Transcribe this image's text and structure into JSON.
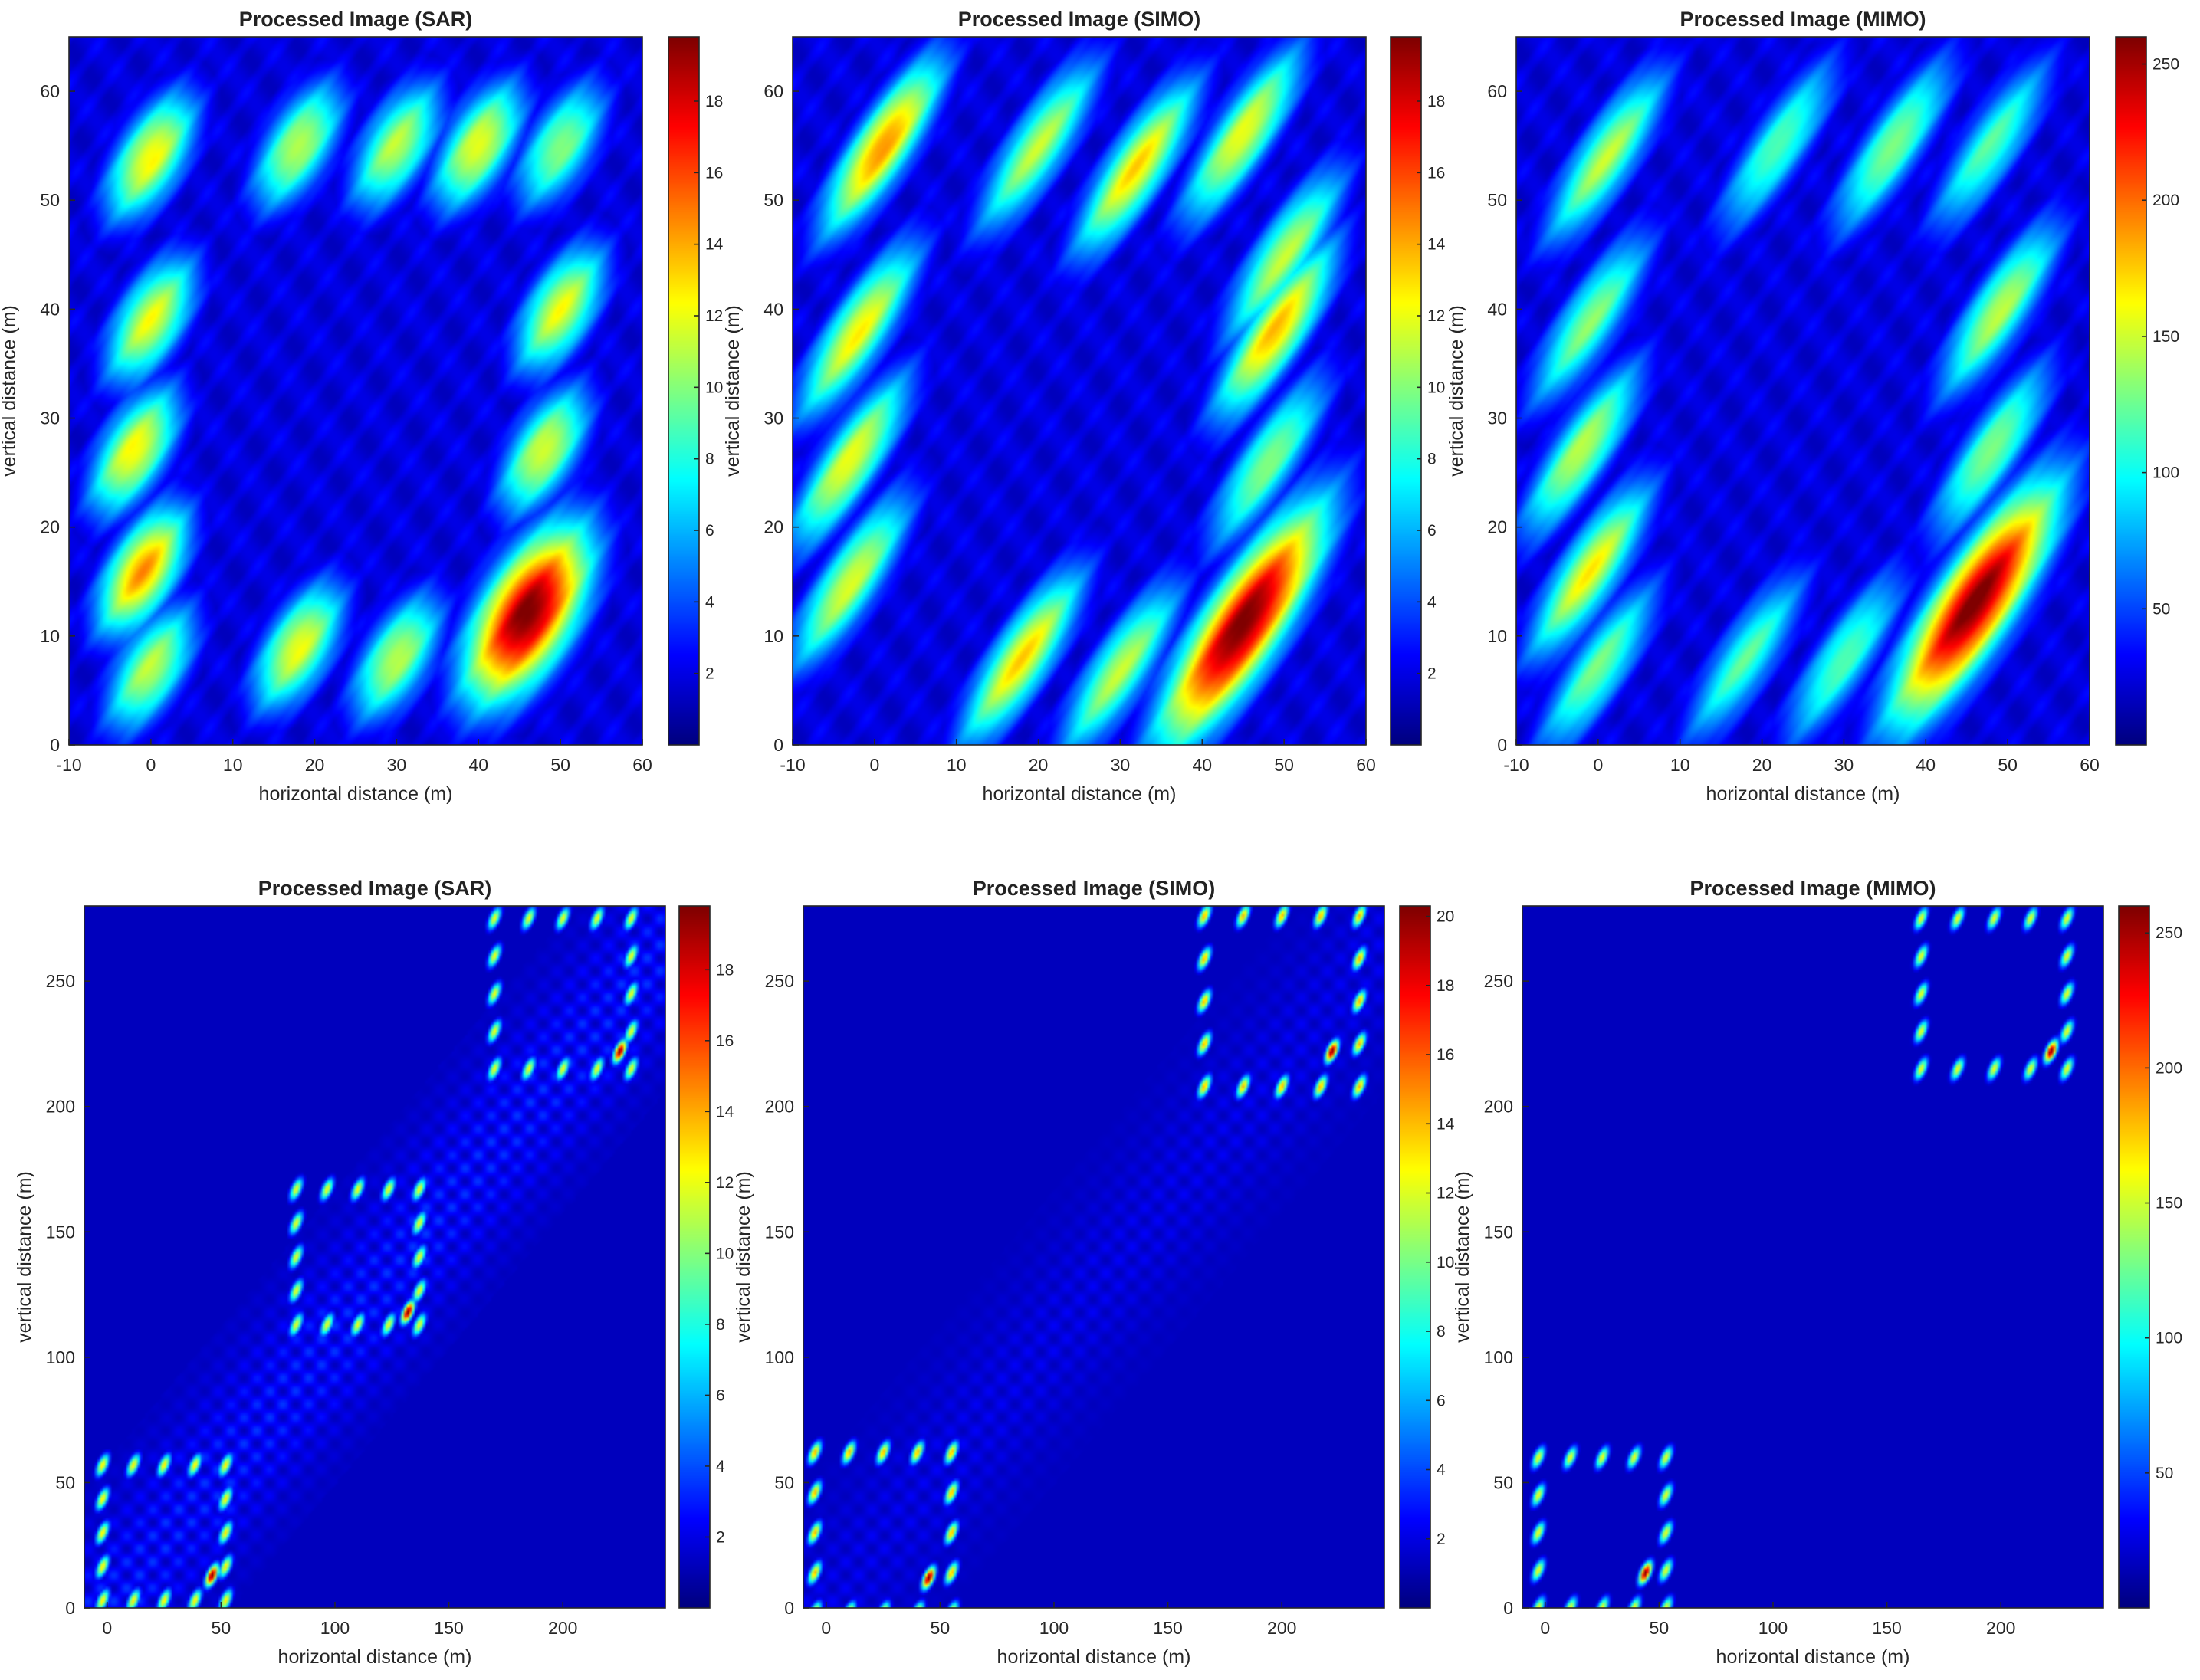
{
  "figure": {
    "panels": [
      {
        "title": "Processed Image (SAR)",
        "xlabel": "horizontal distance (m)",
        "ylabel": "vertical distance (m)"
      },
      {
        "title": "Processed Image (SIMO)",
        "xlabel": "horizontal distance (m)",
        "ylabel": "vertical distance (m)"
      },
      {
        "title": "Processed Image (MIMO)",
        "xlabel": "horizontal distance (m)",
        "ylabel": "vertical distance (m)"
      },
      {
        "title": "Processed Image (SAR)",
        "xlabel": "horizontal distance (m)",
        "ylabel": "vertical distance (m)"
      },
      {
        "title": "Processed Image (SIMO)",
        "xlabel": "horizontal distance (m)",
        "ylabel": "vertical distance (m)"
      },
      {
        "title": "Processed Image (MIMO)",
        "xlabel": "horizontal distance (m)",
        "ylabel": "vertical distance (m)"
      }
    ],
    "colormap": "jet",
    "colormap_stops": [
      "#00008f",
      "#0000ff",
      "#00ffff",
      "#ffff00",
      "#ff0000",
      "#800000"
    ]
  },
  "chart_data": [
    {
      "type": "heatmap",
      "title": "Processed Image (SAR)",
      "xlabel": "horizontal distance (m)",
      "ylabel": "vertical distance (m)",
      "xlim": [
        -10,
        60
      ],
      "ylim": [
        0,
        65
      ],
      "xticks": [
        -10,
        0,
        10,
        20,
        30,
        40,
        50,
        60
      ],
      "yticks": [
        0,
        10,
        20,
        30,
        40,
        50,
        60
      ],
      "clim": [
        0,
        19.8
      ],
      "colorbar_ticks": [
        2,
        4,
        6,
        8,
        10,
        12,
        14,
        16,
        18
      ],
      "scene": "near",
      "peak": {
        "x": 46,
        "y": 12,
        "value": 19.5
      },
      "blobs": [
        {
          "x": 0,
          "y": 54,
          "a": 0.62
        },
        {
          "x": 18,
          "y": 55,
          "a": 0.55
        },
        {
          "x": 30,
          "y": 55,
          "a": 0.55
        },
        {
          "x": 40,
          "y": 55,
          "a": 0.6
        },
        {
          "x": 50,
          "y": 55,
          "a": 0.5
        },
        {
          "x": 0,
          "y": 39,
          "a": 0.6
        },
        {
          "x": 50,
          "y": 40,
          "a": 0.6
        },
        {
          "x": -2,
          "y": 27,
          "a": 0.62
        },
        {
          "x": 48,
          "y": 27,
          "a": 0.58
        },
        {
          "x": -1,
          "y": 16,
          "a": 0.72
        },
        {
          "x": 46,
          "y": 12,
          "a": 1.0
        },
        {
          "x": 0,
          "y": 7,
          "a": 0.55
        },
        {
          "x": 18,
          "y": 9,
          "a": 0.6
        },
        {
          "x": 30,
          "y": 8,
          "a": 0.55
        }
      ]
    },
    {
      "type": "heatmap",
      "title": "Processed Image (SIMO)",
      "xlabel": "horizontal distance (m)",
      "ylabel": "vertical distance (m)",
      "xlim": [
        -10,
        60
      ],
      "ylim": [
        0,
        65
      ],
      "xticks": [
        -10,
        0,
        10,
        20,
        30,
        40,
        50,
        60
      ],
      "yticks": [
        0,
        10,
        20,
        30,
        40,
        50,
        60
      ],
      "clim": [
        0,
        19.8
      ],
      "colorbar_ticks": [
        2,
        4,
        6,
        8,
        10,
        12,
        14,
        16,
        18
      ],
      "scene": "near",
      "peak": {
        "x": 45,
        "y": 11,
        "value": 19.5
      },
      "blobs": [
        {
          "x": 1,
          "y": 55,
          "a": 0.72
        },
        {
          "x": 20,
          "y": 55,
          "a": 0.55
        },
        {
          "x": 32,
          "y": 53,
          "a": 0.65
        },
        {
          "x": 45,
          "y": 56,
          "a": 0.6
        },
        {
          "x": 50,
          "y": 45,
          "a": 0.55
        },
        {
          "x": -2,
          "y": 38,
          "a": 0.62
        },
        {
          "x": 49,
          "y": 38,
          "a": 0.68
        },
        {
          "x": -3,
          "y": 26,
          "a": 0.6
        },
        {
          "x": 48,
          "y": 26,
          "a": 0.5
        },
        {
          "x": -3,
          "y": 15,
          "a": 0.58
        },
        {
          "x": 45,
          "y": 11,
          "a": 1.0
        },
        {
          "x": 18,
          "y": 8,
          "a": 0.65
        },
        {
          "x": 30,
          "y": 7,
          "a": 0.55
        }
      ]
    },
    {
      "type": "heatmap",
      "title": "Processed Image (MIMO)",
      "xlabel": "horizontal distance (m)",
      "ylabel": "vertical distance (m)",
      "xlim": [
        -10,
        60
      ],
      "ylim": [
        0,
        65
      ],
      "xticks": [
        -10,
        0,
        10,
        20,
        30,
        40,
        50,
        60
      ],
      "yticks": [
        0,
        10,
        20,
        30,
        40,
        50,
        60
      ],
      "clim": [
        0,
        260
      ],
      "colorbar_ticks": [
        50,
        100,
        150,
        200,
        250
      ],
      "scene": "near",
      "peak": {
        "x": 46,
        "y": 13,
        "value": 255
      },
      "blobs": [
        {
          "x": 1,
          "y": 54,
          "a": 0.55
        },
        {
          "x": 22,
          "y": 55,
          "a": 0.45
        },
        {
          "x": 36,
          "y": 55,
          "a": 0.5
        },
        {
          "x": 48,
          "y": 55,
          "a": 0.45
        },
        {
          "x": -1,
          "y": 39,
          "a": 0.5
        },
        {
          "x": 49,
          "y": 40,
          "a": 0.55
        },
        {
          "x": -2,
          "y": 27,
          "a": 0.55
        },
        {
          "x": 48,
          "y": 27,
          "a": 0.5
        },
        {
          "x": -1,
          "y": 16,
          "a": 0.62
        },
        {
          "x": 46,
          "y": 13,
          "a": 1.0
        },
        {
          "x": 0,
          "y": 7,
          "a": 0.48
        },
        {
          "x": 18,
          "y": 8,
          "a": 0.45
        },
        {
          "x": 30,
          "y": 8,
          "a": 0.45
        }
      ]
    },
    {
      "type": "heatmap",
      "title": "Processed Image (SAR)",
      "xlabel": "horizontal distance (m)",
      "ylabel": "vertical distance (m)",
      "xlim": [
        -10,
        245
      ],
      "ylim": [
        0,
        280
      ],
      "xticks": [
        0,
        50,
        100,
        150,
        200
      ],
      "yticks": [
        0,
        50,
        100,
        150,
        200,
        250
      ],
      "clim": [
        0,
        19.8
      ],
      "colorbar_ticks": [
        2,
        4,
        6,
        8,
        10,
        12,
        14,
        16,
        18
      ],
      "scene": "far",
      "streak": 0.12,
      "targets": [
        {
          "cx": 25,
          "cy": 30,
          "hw": 27,
          "hh": 27,
          "a": 0.65,
          "peak": {
            "x": 46,
            "y": 13
          }
        },
        {
          "cx": 110,
          "cy": 140,
          "hw": 27,
          "hh": 27,
          "a": 0.62,
          "peak": {
            "x": 132,
            "y": 118
          }
        },
        {
          "cx": 200,
          "cy": 245,
          "hw": 30,
          "hh": 30,
          "a": 0.62,
          "peak": {
            "x": 225,
            "y": 222
          }
        }
      ]
    },
    {
      "type": "heatmap",
      "title": "Processed Image (SIMO)",
      "xlabel": "horizontal distance (m)",
      "ylabel": "vertical distance (m)",
      "xlim": [
        -10,
        245
      ],
      "ylim": [
        0,
        280
      ],
      "xticks": [
        0,
        50,
        100,
        150,
        200
      ],
      "yticks": [
        0,
        50,
        100,
        150,
        200,
        250
      ],
      "clim": [
        0,
        20.3
      ],
      "colorbar_ticks": [
        2,
        4,
        6,
        8,
        10,
        12,
        14,
        16,
        18,
        20
      ],
      "scene": "far",
      "streak": 0.06,
      "targets": [
        {
          "cx": 25,
          "cy": 30,
          "hw": 30,
          "hh": 32,
          "a": 0.7,
          "peak": {
            "x": 45,
            "y": 12
          }
        },
        {
          "cx": 200,
          "cy": 242,
          "hw": 34,
          "hh": 34,
          "a": 0.7,
          "peak": {
            "x": 222,
            "y": 222
          }
        }
      ]
    },
    {
      "type": "heatmap",
      "title": "Processed Image (MIMO)",
      "xlabel": "horizontal distance (m)",
      "ylabel": "vertical distance (m)",
      "xlim": [
        -10,
        245
      ],
      "ylim": [
        0,
        280
      ],
      "xticks": [
        0,
        50,
        100,
        150,
        200
      ],
      "yticks": [
        0,
        50,
        100,
        150,
        200,
        250
      ],
      "clim": [
        0,
        260
      ],
      "colorbar_ticks": [
        50,
        100,
        150,
        200,
        250
      ],
      "scene": "far",
      "streak": 0.0,
      "targets": [
        {
          "cx": 25,
          "cy": 30,
          "hw": 28,
          "hh": 30,
          "a": 0.62,
          "peak": {
            "x": 44,
            "y": 14
          }
        },
        {
          "cx": 197,
          "cy": 245,
          "hw": 32,
          "hh": 30,
          "a": 0.62,
          "peak": {
            "x": 222,
            "y": 222
          }
        }
      ]
    }
  ]
}
